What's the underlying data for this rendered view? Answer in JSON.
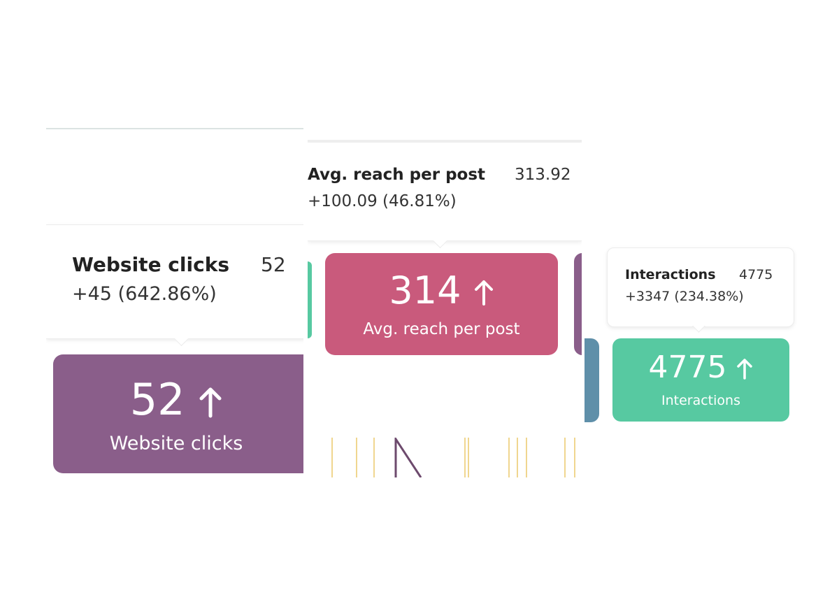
{
  "colors": {
    "purple": "#8a5e8a",
    "pink": "#c95a7c",
    "teal": "#57c9a1",
    "blue": "#5f8fa9",
    "stripe": "#f0d68f"
  },
  "website_clicks": {
    "tooltip": {
      "title": "Website clicks",
      "value": "52",
      "delta": "+45 (642.86%)"
    },
    "card": {
      "value": "52",
      "label": "Website clicks",
      "trend_icon": "arrow-up-icon"
    }
  },
  "avg_reach": {
    "tooltip": {
      "title": "Avg. reach per post",
      "value": "313.92",
      "delta": "+100.09 (46.81%)"
    },
    "card": {
      "value": "314",
      "label": "Avg. reach per post",
      "trend_icon": "arrow-up-icon"
    }
  },
  "interactions": {
    "tooltip": {
      "title": "Interactions",
      "value": "4775",
      "delta": "+3347 (234.38%)"
    },
    "card": {
      "value": "4775",
      "label": "Interactions",
      "trend_icon": "arrow-up-icon"
    }
  }
}
